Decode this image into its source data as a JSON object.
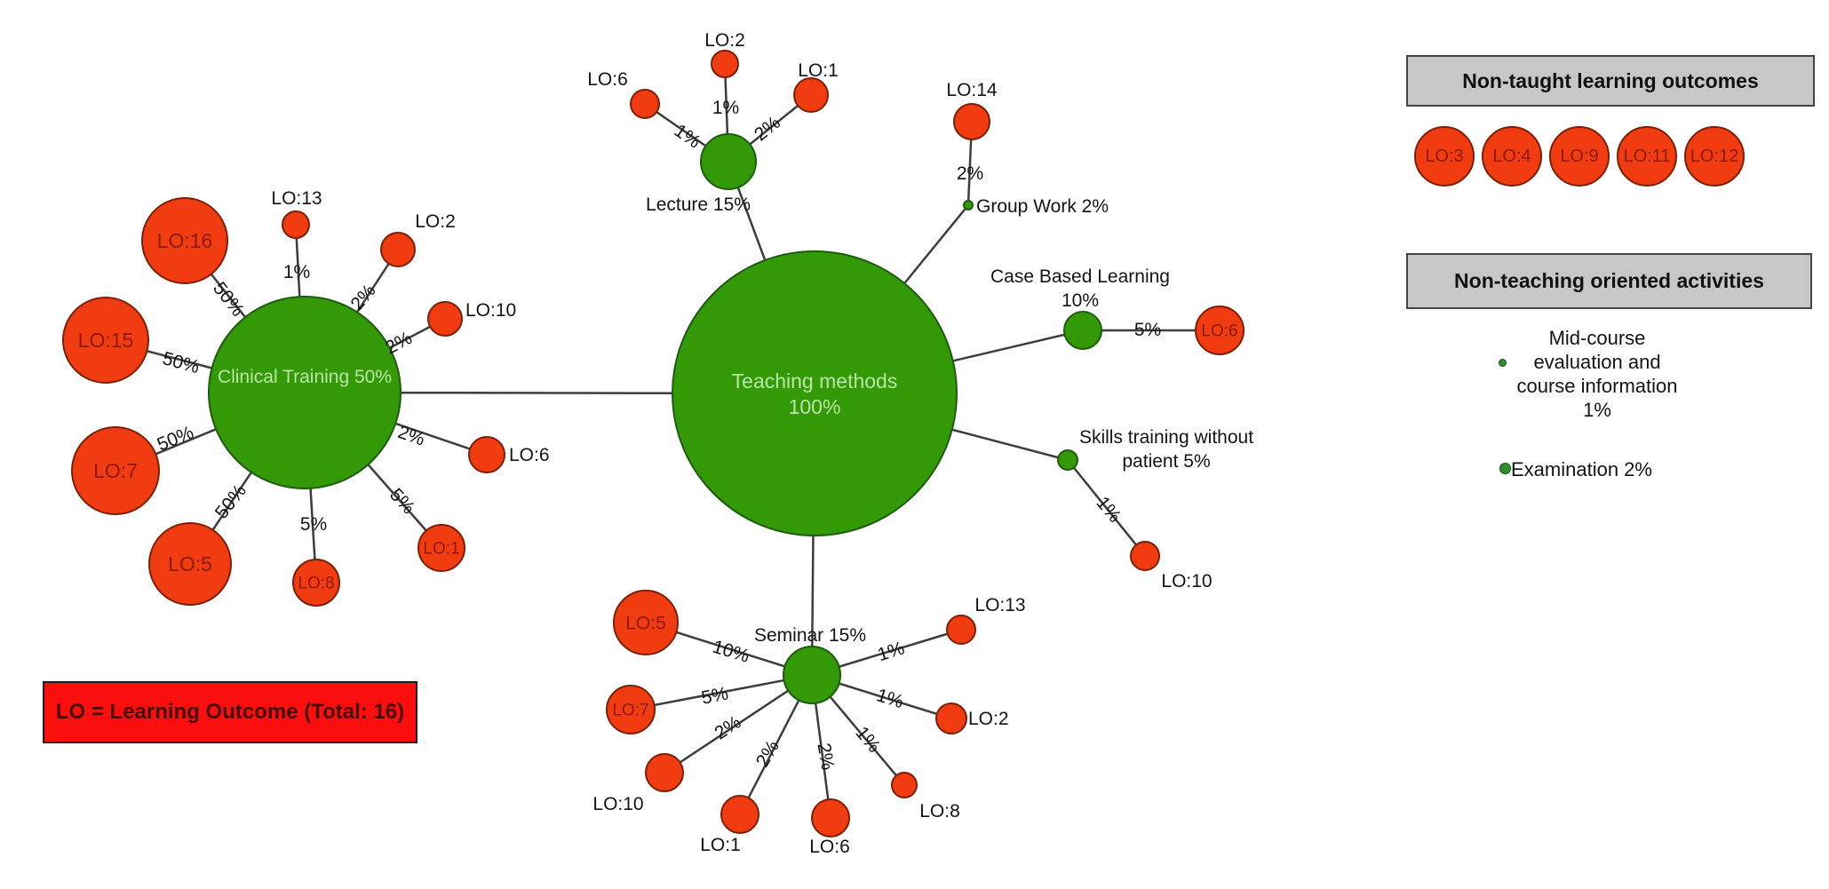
{
  "colors": {
    "method_fill": "#339907",
    "method_stroke": "#1e5c10",
    "outcome_fill": "#f13c11",
    "outcome_stroke": "#7e1f05",
    "method_text": "#b8e9a4",
    "outcome_text": "#8c1a04",
    "text": "#141414",
    "edge": "#3d3d3d",
    "panel_fill": "#c7c7c7",
    "legend_fill": "#fb0e0e",
    "legend_text": "#470704"
  },
  "root": {
    "label_lines": [
      "Teaching methods",
      "100%"
    ]
  },
  "methods": [
    {
      "id": "clinical-training",
      "label": "Clinical Training 50%",
      "outcomes": [
        {
          "lo": "LO:16",
          "pct": "50%",
          "text_inside": true
        },
        {
          "lo": "LO:13",
          "pct": "1%",
          "text_inside": false
        },
        {
          "lo": "LO:2",
          "pct": "2%",
          "text_inside": false
        },
        {
          "lo": "LO:10",
          "pct": "2%",
          "text_inside": false
        },
        {
          "lo": "LO:15",
          "pct": "50%",
          "text_inside": true
        },
        {
          "lo": "LO:7",
          "pct": "50%",
          "text_inside": true
        },
        {
          "lo": "LO:5",
          "pct": "50%",
          "text_inside": true
        },
        {
          "lo": "LO:8",
          "pct": "5%",
          "text_inside": true
        },
        {
          "lo": "LO:1",
          "pct": "5%",
          "text_inside": true
        },
        {
          "lo": "LO:6",
          "pct": "2%",
          "text_inside": false
        }
      ]
    },
    {
      "id": "lecture",
      "label": "Lecture 15%",
      "outcomes": [
        {
          "lo": "LO:6",
          "pct": "1%",
          "text_inside": false
        },
        {
          "lo": "LO:2",
          "pct": "1%",
          "text_inside": false
        },
        {
          "lo": "LO:1",
          "pct": "2%",
          "text_inside": false
        }
      ]
    },
    {
      "id": "group-work",
      "label": "Group Work 2%",
      "outcomes": [
        {
          "lo": "LO:14",
          "pct": "2%",
          "text_inside": false
        }
      ]
    },
    {
      "id": "case-based-learning",
      "label_lines": [
        "Case Based Learning",
        "10%"
      ],
      "outcomes": [
        {
          "lo": "LO:6",
          "pct": "5%",
          "text_inside": true
        }
      ]
    },
    {
      "id": "skills-training",
      "label_lines": [
        "Skills training without",
        "patient 5%"
      ],
      "outcomes": [
        {
          "lo": "LO:10",
          "pct": "1%",
          "text_inside": false
        }
      ]
    },
    {
      "id": "seminar",
      "label": "Seminar 15%",
      "outcomes": [
        {
          "lo": "LO:5",
          "pct": "10%",
          "text_inside": true
        },
        {
          "lo": "LO:7",
          "pct": "5%",
          "text_inside": true
        },
        {
          "lo": "LO:10",
          "pct": "2%",
          "text_inside": false
        },
        {
          "lo": "LO:1",
          "pct": "2%",
          "text_inside": false
        },
        {
          "lo": "LO:6",
          "pct": "2%",
          "text_inside": false
        },
        {
          "lo": "LO:8",
          "pct": "1%",
          "text_inside": false
        },
        {
          "lo": "LO:2",
          "pct": "1%",
          "text_inside": false
        },
        {
          "lo": "LO:13",
          "pct": "1%",
          "text_inside": false
        }
      ]
    }
  ],
  "legend": {
    "text": "LO = Learning Outcome (Total: 16)"
  },
  "non_taught_panel": {
    "title": "Non-taught learning outcomes",
    "outcomes": [
      "LO:3",
      "LO:4",
      "LO:9",
      "LO:11",
      "LO:12"
    ]
  },
  "non_teaching_panel": {
    "title": "Non-teaching oriented activities",
    "activities": [
      {
        "label_lines": [
          "Mid-course",
          "evaluation and",
          "course information",
          "1%"
        ]
      },
      {
        "label": "Examination 2%"
      }
    ]
  }
}
